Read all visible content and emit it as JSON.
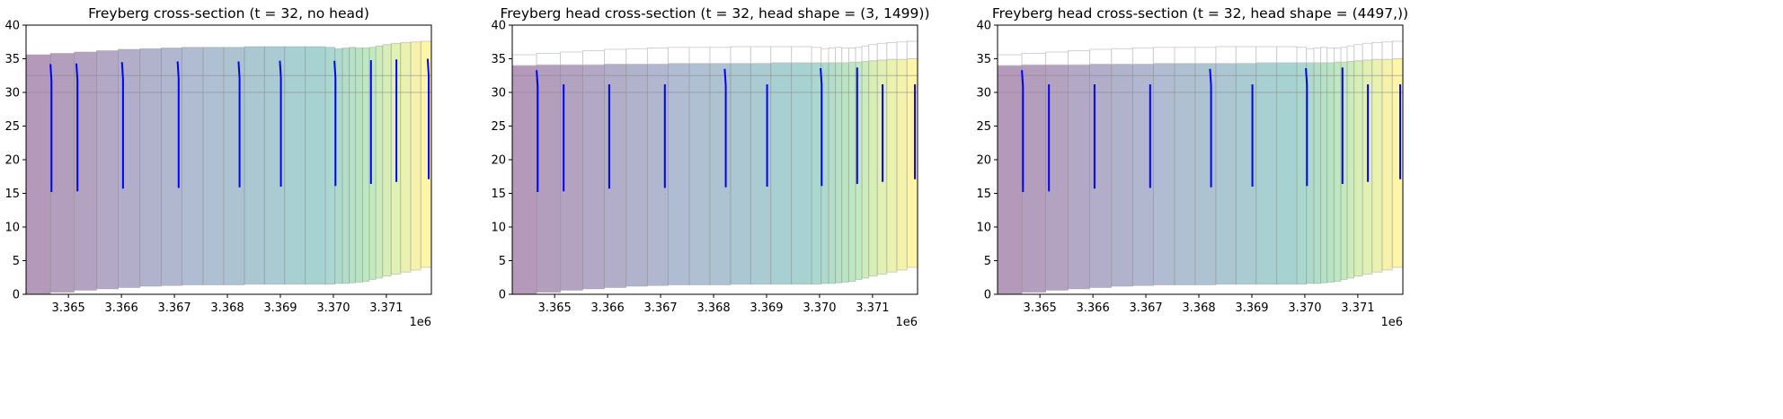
{
  "chart_data": [
    {
      "type": "cross-section",
      "title": "Freyberg cross-section (t = 32, no head)",
      "show_head_fill": false,
      "xlim": [
        3364200,
        3371850
      ],
      "ylim": [
        0,
        40
      ],
      "x_offset_label": "1e6",
      "xticks": [
        3365000,
        3366000,
        3367000,
        3368000,
        3369000,
        3370000,
        3371000
      ],
      "xtick_labels": [
        "3.365",
        "3.366",
        "3.367",
        "3.368",
        "3.369",
        "3.370",
        "3.371"
      ],
      "yticks": [
        0,
        5,
        10,
        15,
        20,
        25,
        30,
        35,
        40
      ],
      "ytick_labels": [
        "0",
        "5",
        "10",
        "15",
        "20",
        "25",
        "30",
        "35",
        "40"
      ],
      "reference_lines": [
        30,
        32.5
      ],
      "grid": false
    },
    {
      "type": "cross-section",
      "title": "Freyberg head cross-section (t = 32, head shape = (3, 1499))",
      "show_head_fill": true,
      "xlim": [
        3364200,
        3371850
      ],
      "ylim": [
        0,
        40
      ],
      "x_offset_label": "1e6",
      "xticks": [
        3365000,
        3366000,
        3367000,
        3368000,
        3369000,
        3370000,
        3371000
      ],
      "xtick_labels": [
        "3.365",
        "3.366",
        "3.367",
        "3.368",
        "3.369",
        "3.370",
        "3.371"
      ],
      "yticks": [
        0,
        5,
        10,
        15,
        20,
        25,
        30,
        35,
        40
      ],
      "ytick_labels": [
        "0",
        "5",
        "10",
        "15",
        "20",
        "25",
        "30",
        "35",
        "40"
      ],
      "reference_lines": [
        30,
        32.5
      ],
      "grid": false
    },
    {
      "type": "cross-section",
      "title": "Freyberg head cross-section (t = 32, head shape = (4497,))",
      "show_head_fill": true,
      "xlim": [
        3364200,
        3371850
      ],
      "ylim": [
        0,
        40
      ],
      "x_offset_label": "1e6",
      "xticks": [
        3365000,
        3366000,
        3367000,
        3368000,
        3369000,
        3370000,
        3371000
      ],
      "xtick_labels": [
        "3.365",
        "3.366",
        "3.367",
        "3.368",
        "3.369",
        "3.370",
        "3.371"
      ],
      "yticks": [
        0,
        5,
        10,
        15,
        20,
        25,
        30,
        35,
        40
      ],
      "ytick_labels": [
        "0",
        "5",
        "10",
        "15",
        "20",
        "25",
        "30",
        "35",
        "40"
      ],
      "reference_lines": [
        30,
        32.5
      ],
      "grid": false
    }
  ],
  "cross_section": {
    "cell_edges": [
      3364200,
      3364660,
      3365110,
      3365530,
      3365940,
      3366350,
      3366750,
      3367140,
      3367540,
      3367930,
      3368320,
      3368700,
      3369080,
      3369470,
      3369850,
      3370030,
      3370170,
      3370300,
      3370420,
      3370550,
      3370680,
      3370800,
      3370930,
      3371090,
      3371270,
      3371460,
      3371650,
      3371850
    ],
    "top": [
      35.6,
      35.8,
      36.0,
      36.2,
      36.4,
      36.5,
      36.6,
      36.7,
      36.7,
      36.7,
      36.8,
      36.8,
      36.8,
      36.8,
      36.7,
      36.5,
      36.6,
      36.7,
      36.6,
      36.6,
      36.7,
      36.9,
      37.1,
      37.3,
      37.4,
      37.5,
      37.6
    ],
    "bottom": [
      0.1,
      0.3,
      0.6,
      0.8,
      1.0,
      1.2,
      1.3,
      1.4,
      1.4,
      1.4,
      1.5,
      1.5,
      1.5,
      1.5,
      1.5,
      1.6,
      1.6,
      1.7,
      1.8,
      1.9,
      2.2,
      2.4,
      2.7,
      3.0,
      3.3,
      3.6,
      4.0
    ],
    "head_top": [
      34.0,
      34.1,
      34.1,
      34.1,
      34.2,
      34.2,
      34.2,
      34.3,
      34.3,
      34.3,
      34.3,
      34.3,
      34.4,
      34.4,
      34.4,
      34.4,
      34.4,
      34.4,
      34.4,
      34.5,
      34.5,
      34.6,
      34.7,
      34.8,
      34.9,
      34.9,
      35.0
    ],
    "colormap": "viridis",
    "fill_alpha": 0.4,
    "well_color": "#0000ff",
    "wells_no_head": [
      {
        "x": 3364680,
        "x_top": 3364660,
        "y_top": 34.2,
        "y_bottom": 15.2
      },
      {
        "x": 3365170,
        "x_top": 3365150,
        "y_top": 34.3,
        "y_bottom": 15.3
      },
      {
        "x": 3366030,
        "x_top": 3366010,
        "y_top": 34.5,
        "y_bottom": 15.7
      },
      {
        "x": 3367080,
        "x_top": 3367060,
        "y_top": 34.6,
        "y_bottom": 15.8
      },
      {
        "x": 3368230,
        "x_top": 3368210,
        "y_top": 34.6,
        "y_bottom": 15.9
      },
      {
        "x": 3369010,
        "x_top": 3368990,
        "y_top": 34.7,
        "y_bottom": 16.0
      },
      {
        "x": 3370040,
        "x_top": 3370020,
        "y_top": 34.7,
        "y_bottom": 16.1
      },
      {
        "x": 3370710,
        "x_top": 3370710,
        "y_top": 34.8,
        "y_bottom": 16.4
      },
      {
        "x": 3371190,
        "x_top": 3371190,
        "y_top": 34.9,
        "y_bottom": 16.7
      },
      {
        "x": 3371800,
        "x_top": 3371780,
        "y_top": 35.0,
        "y_bottom": 17.1
      }
    ],
    "wells_head": [
      {
        "x": 3364680,
        "x_top": 3364660,
        "y_top": 33.3,
        "y_bottom": 15.2
      },
      {
        "x": 3365170,
        "x_top": 3365170,
        "y_top": 31.2,
        "y_bottom": 15.3
      },
      {
        "x": 3366030,
        "x_top": 3366030,
        "y_top": 31.2,
        "y_bottom": 15.7
      },
      {
        "x": 3367080,
        "x_top": 3367080,
        "y_top": 31.2,
        "y_bottom": 15.8
      },
      {
        "x": 3368230,
        "x_top": 3368210,
        "y_top": 33.5,
        "y_bottom": 15.9
      },
      {
        "x": 3369010,
        "x_top": 3369010,
        "y_top": 31.2,
        "y_bottom": 16.0
      },
      {
        "x": 3370040,
        "x_top": 3370020,
        "y_top": 33.6,
        "y_bottom": 16.1
      },
      {
        "x": 3370710,
        "x_top": 3370710,
        "y_top": 33.7,
        "y_bottom": 16.4
      },
      {
        "x": 3371190,
        "x_top": 3371190,
        "y_top": 31.2,
        "y_bottom": 16.7
      },
      {
        "x": 3371800,
        "x_top": 3371800,
        "y_top": 31.2,
        "y_bottom": 17.1
      }
    ]
  }
}
